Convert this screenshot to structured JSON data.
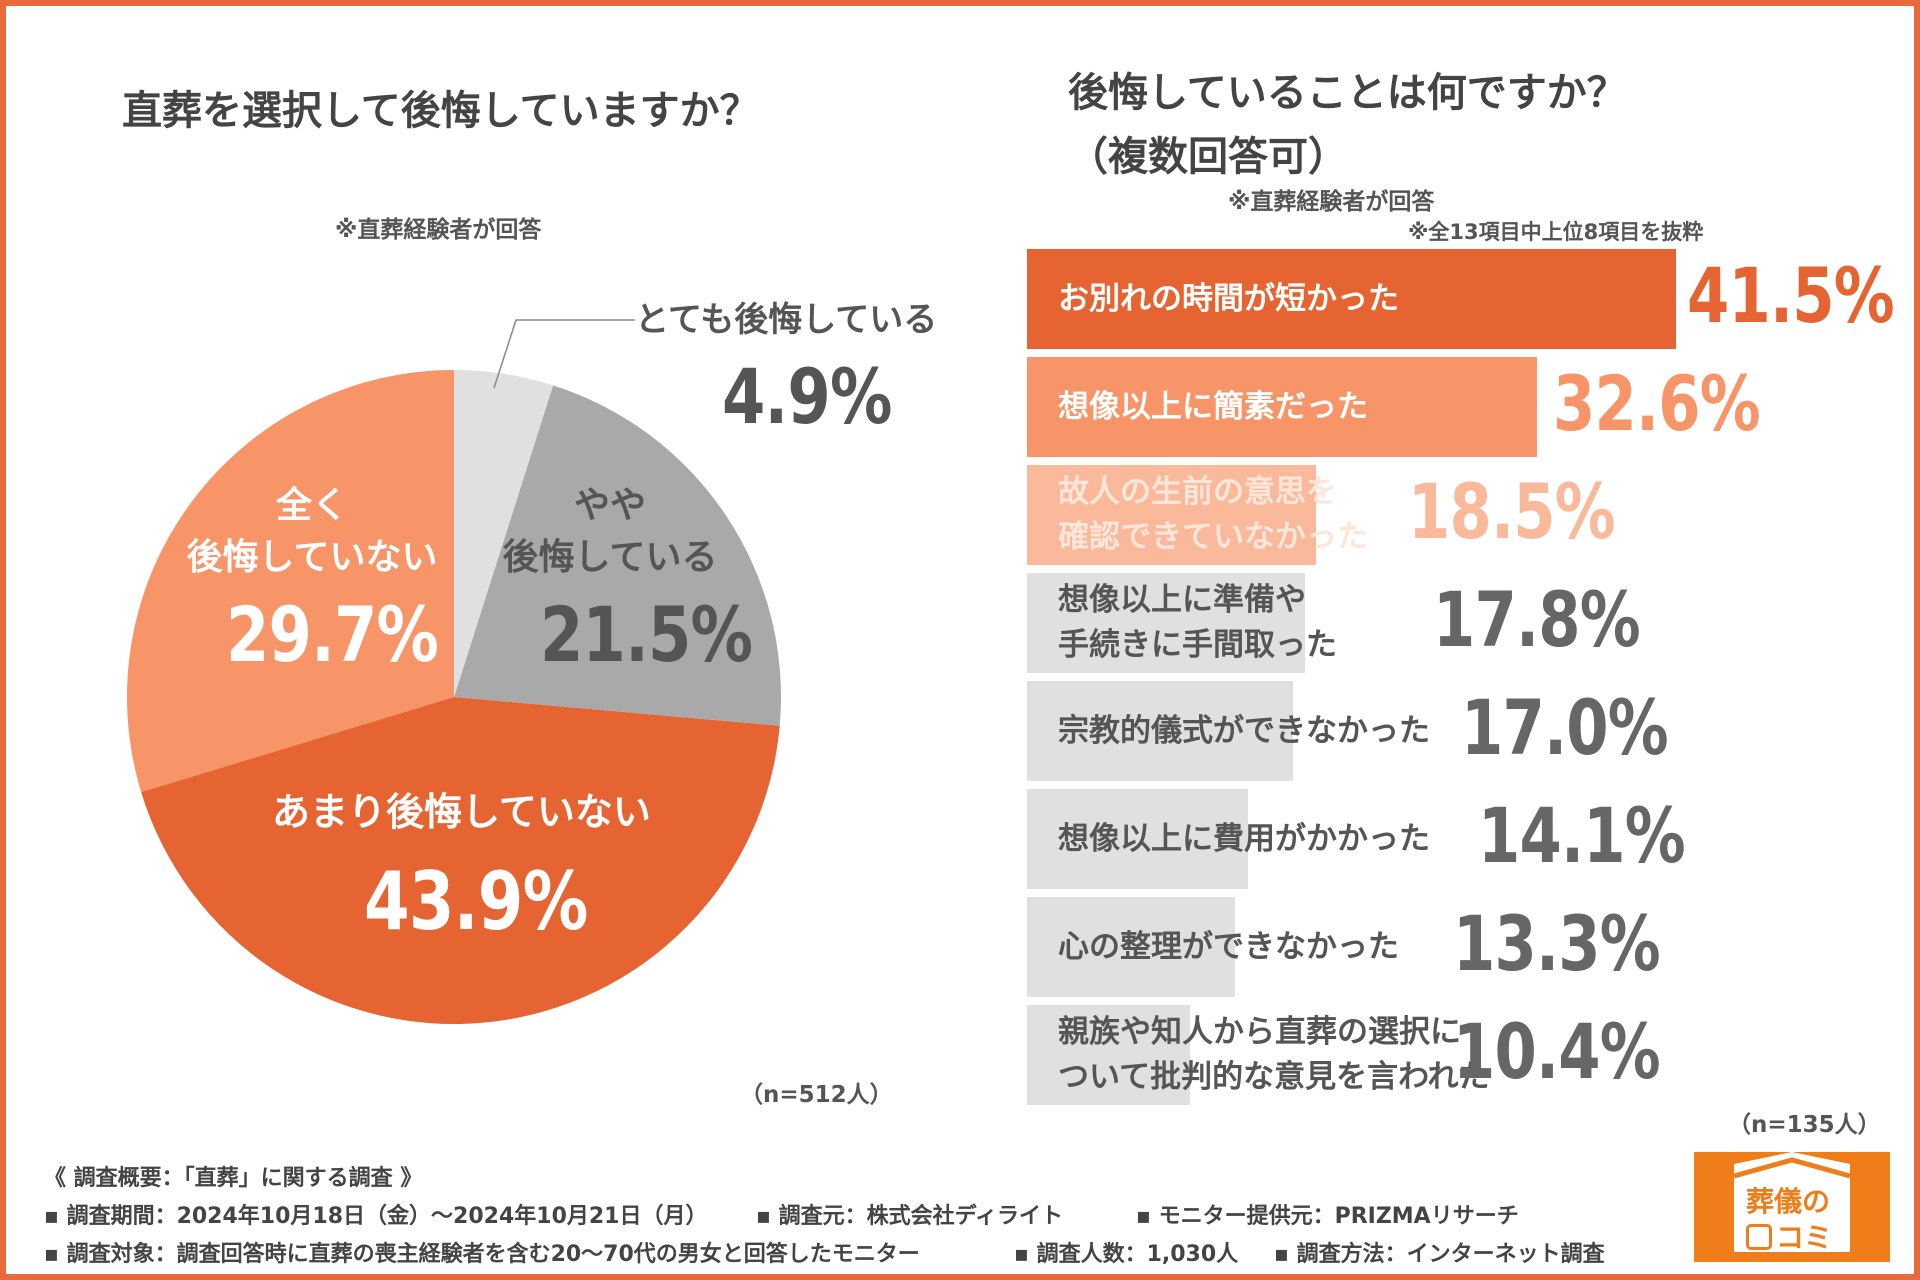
{
  "left": {
    "title": "直葬を選択して後悔していますか？",
    "note": "※直葬経験者が回答",
    "n": "（n=512人）"
  },
  "right": {
    "title1": "後悔していることは何ですか？",
    "title2": "（複数回答可）",
    "note1": "※直葬経験者が回答",
    "note2": "※全13項目中上位8項目を抜粋",
    "n": "（n=135人）"
  },
  "chart_data": [
    {
      "type": "pie",
      "title": "直葬を選択して後悔していますか？",
      "start": "top",
      "direction": "clockwise",
      "slices": [
        {
          "label": "とても後悔している",
          "value": 4.9,
          "display": "4.9%",
          "color": "#e0e0e0"
        },
        {
          "label": "やや後悔している",
          "label_lines": [
            "やや",
            "後悔している"
          ],
          "value": 21.5,
          "display": "21.5%",
          "color": "#a9a9a9"
        },
        {
          "label": "あまり後悔していない",
          "value": 43.9,
          "display": "43.9%",
          "color": "#e66432"
        },
        {
          "label": "全く後悔していない",
          "label_lines": [
            "全く",
            "後悔していない"
          ],
          "value": 29.7,
          "display": "29.7%",
          "color": "#f79468"
        }
      ]
    },
    {
      "type": "bar",
      "orientation": "horizontal",
      "title": "後悔していることは何ですか？（複数回答可）",
      "categories": [
        [
          "お別れの時間が短かった"
        ],
        [
          "想像以上に簡素だった"
        ],
        [
          "故人の生前の意思を",
          "確認できていなかった"
        ],
        [
          "想像以上に準備や",
          "手続きに手間取った"
        ],
        [
          "宗教的儀式ができなかった"
        ],
        [
          "想像以上に費用がかかった"
        ],
        [
          "心の整理ができなかった"
        ],
        [
          "親族や知人から直葬の選択に",
          "ついて批判的な意見を言われた"
        ]
      ],
      "values": [
        41.5,
        32.6,
        18.5,
        17.8,
        17.0,
        14.1,
        13.3,
        10.4
      ],
      "labels": [
        "41.5%",
        "32.6%",
        "18.5%",
        "17.8%",
        "17.0%",
        "14.1%",
        "13.3%",
        "10.4%"
      ],
      "bar_colors": [
        "#e66432",
        "#f79468",
        "#fbb99c",
        "#e0e0e0",
        "#e0e0e0",
        "#e0e0e0",
        "#e0e0e0",
        "#e0e0e0"
      ],
      "value_colors": [
        "#e66432",
        "#f79468",
        "#fbb99c",
        "#666666",
        "#666666",
        "#666666",
        "#666666",
        "#666666"
      ],
      "label_colors": [
        "#ffffff",
        "#ffffff",
        "#ffe6da",
        "#555555",
        "#555555",
        "#555555",
        "#555555",
        "#555555"
      ]
    }
  ],
  "footer": {
    "heading": "《 調査概要：「直葬」に関する調査 》",
    "line1": [
      "▪ 調査期間：2024年10月18日（金）〜2024年10月21日（月）",
      "▪ 調査元：株式会社ディライト",
      "▪ モニター提供元：PRIZMAリサーチ"
    ],
    "line2": [
      "▪ 調査対象：調査回答時に直葬の喪主経験者を含む20〜70代の男女と回答したモニター",
      "▪ 調査人数：1,030人",
      "▪ 調査方法：インターネット調査"
    ]
  },
  "logo": {
    "text1": "葬儀の",
    "text2": "コミ",
    "color": "#ef7d1a"
  }
}
